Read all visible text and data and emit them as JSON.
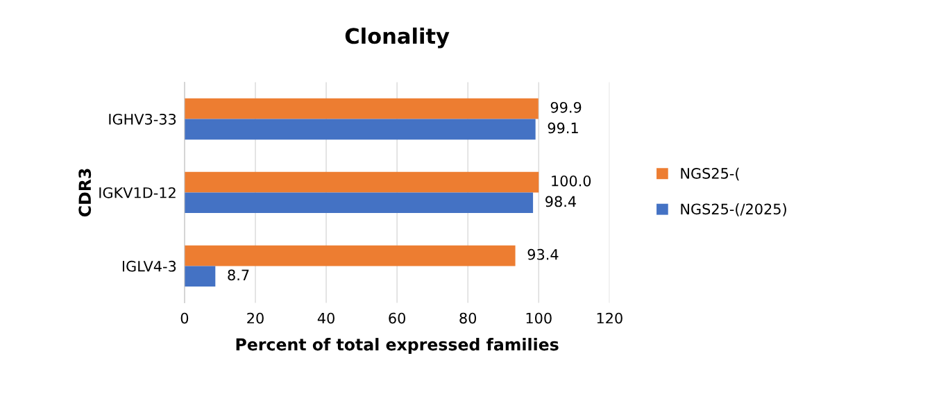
{
  "chart_data": {
    "type": "bar",
    "orientation": "horizontal",
    "title": "Clonality",
    "xlabel": "Percent of total expressed families",
    "ylabel": "CDR3",
    "categories": [
      "IGHV3-33",
      "IGKV1D-12",
      "IGLV4-3"
    ],
    "series": [
      {
        "name": "NGS25-(",
        "color": "#ed7d31",
        "values": [
          99.9,
          100.0,
          93.4
        ],
        "value_labels": [
          "99.9",
          "100.0",
          "93.4"
        ]
      },
      {
        "name": "NGS25-(/2025)",
        "color": "#4472c4",
        "values": [
          99.1,
          98.4,
          8.7
        ],
        "value_labels": [
          "99.1",
          "98.4",
          "8.7"
        ]
      }
    ],
    "xlim": [
      0,
      120
    ],
    "xticks": [
      0,
      20,
      40,
      60,
      80,
      100,
      120
    ],
    "grid": "x",
    "legend": "right"
  }
}
